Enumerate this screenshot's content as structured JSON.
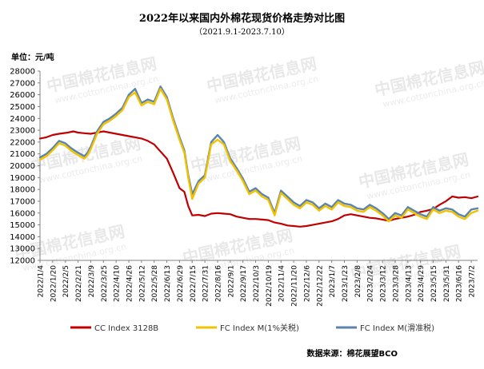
{
  "chart_data": {
    "type": "line",
    "title": "2022年以来国内外棉花现货价格走势对比图",
    "subtitle": "（2021.9.1-2023.7.10）",
    "ylabel": "单位：元/吨",
    "source": "数据来源：棉花展望BCO",
    "watermark": "中国棉花信息网",
    "watermark_url": "www.cottonchina.org.cn",
    "ylim": [
      12000,
      28000
    ],
    "yticks": [
      12000,
      13000,
      14000,
      15000,
      16000,
      17000,
      18000,
      19000,
      20000,
      21000,
      22000,
      23000,
      24000,
      25000,
      26000,
      27000,
      28000
    ],
    "xlim": [
      "2022/1/4",
      "2023/7/10"
    ],
    "xticks": [
      "2022/1/4",
      "2022/1/20",
      "2022/2/5",
      "2022/2/21",
      "2022/3/9",
      "2022/3/25",
      "2022/4/10",
      "2022/4/26",
      "2022/5/12",
      "2022/5/28",
      "2022/6/13",
      "2022/6/29",
      "2022/7/15",
      "2022/7/31",
      "2022/8/16",
      "2022/9/1",
      "2022/9/17",
      "2022/10/3",
      "2022/10/19",
      "2022/11/4",
      "2022/11/20",
      "2022/12/6",
      "2022/12/22",
      "2023/1/7",
      "2023/1/23",
      "2023/2/8",
      "2023/2/24",
      "2023/3/12",
      "2023/3/28",
      "2023/4/13",
      "2023/4/29",
      "2023/5/15",
      "2023/5/31",
      "2023/6/16",
      "2023/7/2"
    ],
    "grid": false,
    "legend_position": "bottom",
    "series": [
      {
        "name": "CC Index 3128B",
        "color": "#c00000",
        "points": [
          [
            "2022/1/4",
            22300
          ],
          [
            "2022/1/12",
            22400
          ],
          [
            "2022/1/20",
            22600
          ],
          [
            "2022/1/28",
            22700
          ],
          [
            "2022/2/8",
            22800
          ],
          [
            "2022/2/15",
            22900
          ],
          [
            "2022/2/21",
            22800
          ],
          [
            "2022/3/1",
            22750
          ],
          [
            "2022/3/9",
            22700
          ],
          [
            "2022/3/17",
            22800
          ],
          [
            "2022/3/25",
            22900
          ],
          [
            "2022/4/2",
            22800
          ],
          [
            "2022/4/10",
            22700
          ],
          [
            "2022/4/18",
            22600
          ],
          [
            "2022/4/26",
            22500
          ],
          [
            "2022/5/4",
            22400
          ],
          [
            "2022/5/12",
            22300
          ],
          [
            "2022/5/20",
            22100
          ],
          [
            "2022/5/28",
            21800
          ],
          [
            "2022/6/5",
            21200
          ],
          [
            "2022/6/13",
            20600
          ],
          [
            "2022/6/21",
            19400
          ],
          [
            "2022/6/29",
            18100
          ],
          [
            "2022/7/5",
            17800
          ],
          [
            "2022/7/10",
            16600
          ],
          [
            "2022/7/15",
            15800
          ],
          [
            "2022/7/23",
            15850
          ],
          [
            "2022/7/31",
            15750
          ],
          [
            "2022/8/8",
            15950
          ],
          [
            "2022/8/16",
            16000
          ],
          [
            "2022/8/24",
            15950
          ],
          [
            "2022/9/1",
            15900
          ],
          [
            "2022/9/9",
            15700
          ],
          [
            "2022/9/17",
            15600
          ],
          [
            "2022/9/25",
            15500
          ],
          [
            "2022/10/3",
            15500
          ],
          [
            "2022/10/11",
            15450
          ],
          [
            "2022/10/19",
            15400
          ],
          [
            "2022/10/27",
            15200
          ],
          [
            "2022/11/4",
            15100
          ],
          [
            "2022/11/12",
            14950
          ],
          [
            "2022/11/20",
            14900
          ],
          [
            "2022/11/28",
            14850
          ],
          [
            "2022/12/6",
            14900
          ],
          [
            "2022/12/14",
            15000
          ],
          [
            "2022/12/22",
            15100
          ],
          [
            "2022/12/30",
            15200
          ],
          [
            "2023/1/7",
            15300
          ],
          [
            "2023/1/15",
            15500
          ],
          [
            "2023/1/23",
            15800
          ],
          [
            "2023/1/31",
            15900
          ],
          [
            "2023/2/8",
            15800
          ],
          [
            "2023/2/16",
            15700
          ],
          [
            "2023/2/24",
            15600
          ],
          [
            "2023/3/4",
            15550
          ],
          [
            "2023/3/12",
            15450
          ],
          [
            "2023/3/20",
            15350
          ],
          [
            "2023/3/28",
            15500
          ],
          [
            "2023/4/5",
            15600
          ],
          [
            "2023/4/13",
            15700
          ],
          [
            "2023/4/21",
            15850
          ],
          [
            "2023/4/29",
            16100
          ],
          [
            "2023/5/7",
            16200
          ],
          [
            "2023/5/15",
            16350
          ],
          [
            "2023/5/23",
            16700
          ],
          [
            "2023/5/31",
            17000
          ],
          [
            "2023/6/8",
            17400
          ],
          [
            "2023/6/16",
            17300
          ],
          [
            "2023/6/24",
            17350
          ],
          [
            "2023/7/2",
            17250
          ],
          [
            "2023/7/10",
            17400
          ]
        ]
      },
      {
        "name": "FC Index M(1%关税)",
        "color": "#f2c200",
        "points": [
          [
            "2022/1/4",
            20500
          ],
          [
            "2022/1/12",
            20800
          ],
          [
            "2022/1/20",
            21300
          ],
          [
            "2022/1/28",
            21900
          ],
          [
            "2022/2/5",
            21700
          ],
          [
            "2022/2/12",
            21300
          ],
          [
            "2022/2/21",
            20900
          ],
          [
            "2022/3/1",
            20600
          ],
          [
            "2022/3/5",
            20900
          ],
          [
            "2022/3/9",
            21400
          ],
          [
            "2022/3/17",
            22700
          ],
          [
            "2022/3/25",
            23500
          ],
          [
            "2022/4/2",
            23800
          ],
          [
            "2022/4/10",
            24200
          ],
          [
            "2022/4/18",
            24700
          ],
          [
            "2022/4/26",
            25800
          ],
          [
            "2022/5/4",
            26200
          ],
          [
            "2022/5/12",
            25100
          ],
          [
            "2022/5/20",
            25400
          ],
          [
            "2022/5/28",
            25200
          ],
          [
            "2022/6/5",
            26500
          ],
          [
            "2022/6/13",
            25600
          ],
          [
            "2022/6/21",
            23800
          ],
          [
            "2022/6/29",
            22200
          ],
          [
            "2022/7/5",
            21100
          ],
          [
            "2022/7/10",
            19000
          ],
          [
            "2022/7/15",
            17200
          ],
          [
            "2022/7/23",
            18500
          ],
          [
            "2022/7/31",
            19000
          ],
          [
            "2022/8/8",
            21800
          ],
          [
            "2022/8/16",
            22200
          ],
          [
            "2022/8/24",
            21800
          ],
          [
            "2022/9/1",
            20400
          ],
          [
            "2022/9/9",
            19600
          ],
          [
            "2022/9/17",
            18700
          ],
          [
            "2022/9/25",
            17600
          ],
          [
            "2022/10/3",
            17900
          ],
          [
            "2022/10/11",
            17400
          ],
          [
            "2022/10/19",
            17100
          ],
          [
            "2022/10/27",
            15800
          ],
          [
            "2022/11/4",
            17700
          ],
          [
            "2022/11/12",
            17200
          ],
          [
            "2022/11/20",
            16700
          ],
          [
            "2022/11/28",
            16400
          ],
          [
            "2022/12/6",
            16900
          ],
          [
            "2022/12/14",
            16700
          ],
          [
            "2022/12/22",
            16200
          ],
          [
            "2022/12/30",
            16600
          ],
          [
            "2023/1/7",
            16300
          ],
          [
            "2023/1/15",
            16900
          ],
          [
            "2023/1/23",
            16600
          ],
          [
            "2023/1/31",
            16500
          ],
          [
            "2023/2/8",
            16200
          ],
          [
            "2023/2/16",
            16100
          ],
          [
            "2023/2/24",
            16500
          ],
          [
            "2023/3/4",
            16200
          ],
          [
            "2023/3/12",
            15800
          ],
          [
            "2023/3/20",
            15300
          ],
          [
            "2023/3/28",
            15800
          ],
          [
            "2023/4/5",
            15600
          ],
          [
            "2023/4/13",
            16300
          ],
          [
            "2023/4/21",
            16000
          ],
          [
            "2023/4/29",
            15700
          ],
          [
            "2023/5/7",
            15500
          ],
          [
            "2023/5/15",
            16300
          ],
          [
            "2023/5/23",
            16000
          ],
          [
            "2023/5/31",
            16200
          ],
          [
            "2023/6/8",
            16100
          ],
          [
            "2023/6/16",
            15700
          ],
          [
            "2023/6/24",
            15500
          ],
          [
            "2023/7/2",
            16000
          ],
          [
            "2023/7/10",
            16200
          ]
        ]
      },
      {
        "name": "FC Index M(滑准税)",
        "color": "#5b84ad",
        "points": [
          [
            "2022/1/4",
            20700
          ],
          [
            "2022/1/12",
            21000
          ],
          [
            "2022/1/20",
            21500
          ],
          [
            "2022/1/28",
            22100
          ],
          [
            "2022/2/5",
            21900
          ],
          [
            "2022/2/12",
            21500
          ],
          [
            "2022/2/21",
            21100
          ],
          [
            "2022/3/1",
            20800
          ],
          [
            "2022/3/5",
            21100
          ],
          [
            "2022/3/9",
            21600
          ],
          [
            "2022/3/17",
            22900
          ],
          [
            "2022/3/25",
            23700
          ],
          [
            "2022/4/2",
            24000
          ],
          [
            "2022/4/10",
            24400
          ],
          [
            "2022/4/18",
            24900
          ],
          [
            "2022/4/26",
            26000
          ],
          [
            "2022/5/4",
            26500
          ],
          [
            "2022/5/12",
            25300
          ],
          [
            "2022/5/20",
            25600
          ],
          [
            "2022/5/28",
            25400
          ],
          [
            "2022/6/5",
            26700
          ],
          [
            "2022/6/13",
            25800
          ],
          [
            "2022/6/21",
            24000
          ],
          [
            "2022/6/29",
            22400
          ],
          [
            "2022/7/5",
            21300
          ],
          [
            "2022/7/10",
            19200
          ],
          [
            "2022/7/15",
            17600
          ],
          [
            "2022/7/23",
            18700
          ],
          [
            "2022/7/31",
            19200
          ],
          [
            "2022/8/8",
            22000
          ],
          [
            "2022/8/16",
            22600
          ],
          [
            "2022/8/24",
            22000
          ],
          [
            "2022/9/1",
            20600
          ],
          [
            "2022/9/9",
            19800
          ],
          [
            "2022/9/17",
            18900
          ],
          [
            "2022/9/25",
            17800
          ],
          [
            "2022/10/3",
            18100
          ],
          [
            "2022/10/11",
            17600
          ],
          [
            "2022/10/19",
            17300
          ],
          [
            "2022/10/27",
            16000
          ],
          [
            "2022/11/4",
            17900
          ],
          [
            "2022/11/12",
            17400
          ],
          [
            "2022/11/20",
            16900
          ],
          [
            "2022/11/28",
            16600
          ],
          [
            "2022/12/6",
            17100
          ],
          [
            "2022/12/14",
            16900
          ],
          [
            "2022/12/22",
            16400
          ],
          [
            "2022/12/30",
            16800
          ],
          [
            "2023/1/7",
            16500
          ],
          [
            "2023/1/15",
            17100
          ],
          [
            "2023/1/23",
            16800
          ],
          [
            "2023/1/31",
            16700
          ],
          [
            "2023/2/8",
            16400
          ],
          [
            "2023/2/16",
            16300
          ],
          [
            "2023/2/24",
            16700
          ],
          [
            "2023/3/4",
            16400
          ],
          [
            "2023/3/12",
            16000
          ],
          [
            "2023/3/20",
            15500
          ],
          [
            "2023/3/28",
            16000
          ],
          [
            "2023/4/5",
            15800
          ],
          [
            "2023/4/13",
            16500
          ],
          [
            "2023/4/21",
            16200
          ],
          [
            "2023/4/29",
            15900
          ],
          [
            "2023/5/7",
            15700
          ],
          [
            "2023/5/15",
            16500
          ],
          [
            "2023/5/23",
            16200
          ],
          [
            "2023/5/31",
            16400
          ],
          [
            "2023/6/8",
            16300
          ],
          [
            "2023/6/16",
            15900
          ],
          [
            "2023/6/24",
            15700
          ],
          [
            "2023/7/2",
            16300
          ],
          [
            "2023/7/10",
            16400
          ]
        ]
      }
    ]
  }
}
